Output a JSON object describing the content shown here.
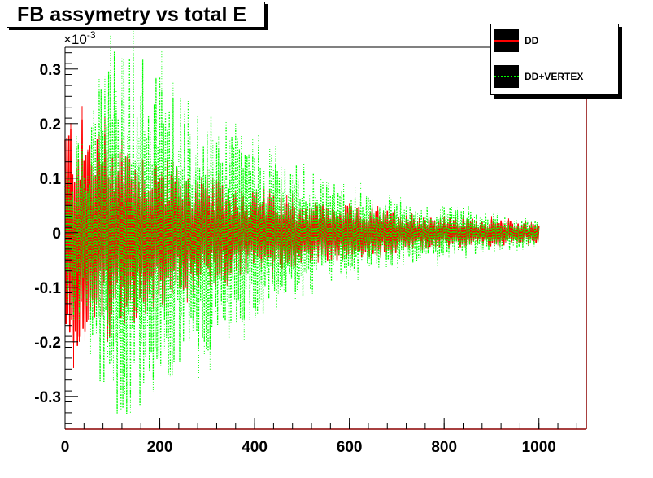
{
  "chart_data": {
    "type": "line",
    "title": "FB assymetry vs total E",
    "xlabel": "",
    "ylabel": "",
    "xlim": [
      0,
      1100
    ],
    "ylim": [
      -0.36,
      0.34
    ],
    "y_multiplier": "×10",
    "y_multiplier_exponent": "-3",
    "x_ticks": [
      "0",
      "200",
      "400",
      "600",
      "800",
      "1000"
    ],
    "y_ticks": [
      "0.3",
      "0.2",
      "0.1",
      "0",
      "-0.1",
      "-0.2",
      "-0.3"
    ],
    "grid": false,
    "legend_position": "top-right",
    "series": [
      {
        "name": "DD",
        "color": "#ff0000",
        "style": "solid",
        "x_range": [
          0,
          1000
        ],
        "envelope": [
          [
            0,
            0.22
          ],
          [
            25,
            0.22
          ],
          [
            50,
            0.2
          ],
          [
            100,
            0.19
          ],
          [
            200,
            0.14
          ],
          [
            300,
            0.1
          ],
          [
            400,
            0.08
          ],
          [
            500,
            0.06
          ],
          [
            600,
            0.05
          ],
          [
            700,
            0.04
          ],
          [
            800,
            0.03
          ],
          [
            900,
            0.025
          ],
          [
            1000,
            0.02
          ]
        ]
      },
      {
        "name": "DD+VERTEX",
        "color": "#00ff00",
        "style": "dotted",
        "x_range": [
          0,
          1000
        ],
        "envelope": [
          [
            0,
            0.12
          ],
          [
            50,
            0.22
          ],
          [
            100,
            0.34
          ],
          [
            150,
            0.34
          ],
          [
            200,
            0.3
          ],
          [
            250,
            0.26
          ],
          [
            300,
            0.22
          ],
          [
            350,
            0.2
          ],
          [
            400,
            0.16
          ],
          [
            500,
            0.12
          ],
          [
            600,
            0.08
          ],
          [
            700,
            0.06
          ],
          [
            800,
            0.05
          ],
          [
            900,
            0.035
          ],
          [
            1000,
            0.025
          ]
        ]
      }
    ]
  },
  "colors": {
    "frame_right": "#8b0000",
    "background": "#ffffff"
  }
}
